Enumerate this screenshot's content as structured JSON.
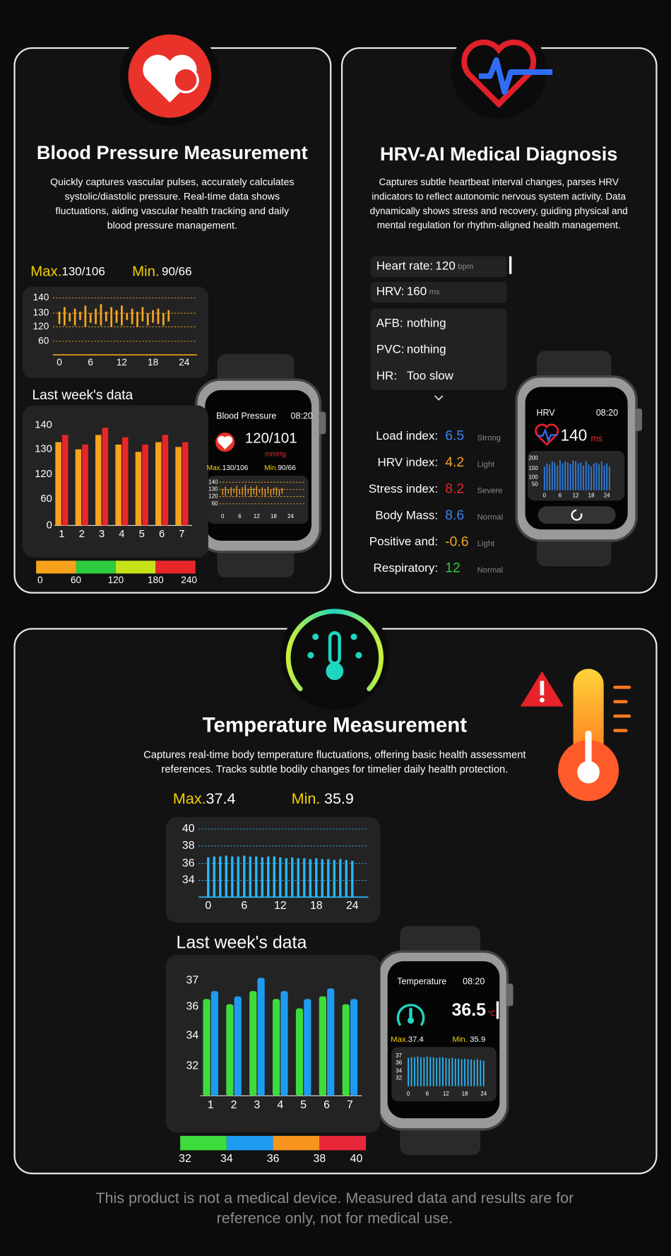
{
  "blood_pressure": {
    "title": "Blood Pressure Measurement",
    "description": [
      "Quickly captures vascular pulses, accurately calculates",
      "systolic/diastolic pressure. Real-time data shows",
      "fluctuations, aiding vascular health tracking and daily",
      "blood pressure management."
    ],
    "max_label": "Max.",
    "max_value": "130/106",
    "min_label": "Min.",
    "min_value": "90/66",
    "day_chart": {
      "yticks": [
        140,
        130,
        120,
        60
      ],
      "xticks": [
        0,
        6,
        12,
        18,
        24
      ],
      "color": "#f5a623",
      "x": [
        0,
        1,
        2,
        3,
        4,
        5,
        6,
        7,
        8,
        9,
        10,
        11,
        12,
        13,
        14,
        15,
        16,
        17,
        18,
        19,
        20,
        21
      ],
      "ranges": [
        [
          122,
          131
        ],
        [
          121,
          134
        ],
        [
          124,
          130
        ],
        [
          121,
          133
        ],
        [
          125,
          131
        ],
        [
          120,
          135
        ],
        [
          123,
          130
        ],
        [
          122,
          133
        ],
        [
          121,
          136
        ],
        [
          124,
          131
        ],
        [
          120,
          134
        ],
        [
          123,
          132
        ],
        [
          121,
          135
        ],
        [
          125,
          130
        ],
        [
          122,
          133
        ],
        [
          120,
          131
        ],
        [
          124,
          134
        ],
        [
          121,
          130
        ],
        [
          123,
          132
        ],
        [
          122,
          133
        ],
        [
          121,
          130
        ],
        [
          124,
          132
        ]
      ]
    },
    "week_title": "Last week's data",
    "week_chart": {
      "yticks": [
        140,
        130,
        120,
        60,
        0
      ],
      "categories": [
        "1",
        "2",
        "3",
        "4",
        "5",
        "6",
        "7"
      ],
      "series": [
        {
          "color": "#f7a21b",
          "values": [
            133,
            130,
            136,
            132,
            129,
            133,
            131
          ]
        },
        {
          "color": "#e8262a",
          "values": [
            136,
            132,
            139,
            135,
            132,
            136,
            133
          ]
        }
      ]
    },
    "scale": {
      "ticks": [
        0,
        60,
        120,
        180,
        240
      ],
      "colors": [
        "#f7a21b",
        "#2ecc40",
        "#c6e21b",
        "#e8262a"
      ]
    },
    "watch": {
      "title": "Blood Pressure",
      "time": "08:20",
      "reading": "120/101",
      "unit": "mmHg",
      "max_label": "Max.",
      "max_value": "130/106",
      "min_label": "Min.",
      "min_value": "90/66",
      "yticks": [
        140,
        130,
        120,
        60
      ],
      "xticks": [
        0,
        6,
        12,
        18,
        24
      ]
    }
  },
  "hrv": {
    "title": "HRV-AI Medical Diagnosis",
    "description": [
      "Captures subtle heartbeat interval changes, parses HRV",
      "indicators to reflect autonomic nervous system activity. Data",
      "dynamically shows stress and recovery, guiding physical and",
      "mental regulation for rhythm-aligned health management."
    ],
    "readings": [
      {
        "label": "Heart rate:",
        "value": "120",
        "unit": "bpm"
      },
      {
        "label": "HRV:",
        "value": "160",
        "unit": "ms"
      }
    ],
    "findings": [
      {
        "label": "AFB:",
        "value": "nothing"
      },
      {
        "label": "PVC:",
        "value": "nothing"
      },
      {
        "label": "HR:",
        "value": "Too slow"
      }
    ],
    "indices": [
      {
        "label": "Load index:",
        "value": "6.5",
        "status": "Strong",
        "color": "#3b82f6"
      },
      {
        "label": "HRV index:",
        "value": "4.2",
        "status": "Light",
        "color": "#f5a623"
      },
      {
        "label": "Stress index:",
        "value": "8.2",
        "status": "Severe",
        "color": "#e8262a"
      },
      {
        "label": "Body Mass:",
        "value": "8.6",
        "status": "Normal",
        "color": "#3b82f6"
      },
      {
        "label": "Positive and:",
        "value": "-0.6",
        "status": "Light",
        "color": "#f5a623"
      },
      {
        "label": "Respiratory:",
        "value": "12",
        "status": "Normal",
        "color": "#2ecc40"
      }
    ],
    "watch": {
      "title": "HRV",
      "time": "08:20",
      "reading": "140",
      "unit": "ms",
      "yticks": [
        200,
        150,
        100,
        50
      ],
      "xticks": [
        0,
        6,
        12,
        18,
        24
      ],
      "color": "#2f7de1",
      "x": [
        0,
        1,
        2,
        3,
        4,
        5,
        6,
        7,
        8,
        9,
        10,
        11,
        12,
        13,
        14,
        15,
        16,
        17,
        18,
        19,
        20,
        21,
        22,
        23,
        24,
        25
      ],
      "values": [
        160,
        175,
        170,
        185,
        180,
        165,
        190,
        175,
        185,
        180,
        170,
        190,
        185,
        175,
        180,
        165,
        185,
        170,
        160,
        175,
        180,
        170,
        185,
        165,
        175,
        160
      ]
    }
  },
  "temperature": {
    "title": "Temperature Measurement",
    "description": [
      "Captures real-time body temperature fluctuations, offering basic health assessment",
      "references. Tracks subtle bodily changes for timelier daily health protection."
    ],
    "max_label": "Max.",
    "max_value": "37.4",
    "min_label": "Min.",
    "min_value": "35.9",
    "day_chart": {
      "yticks": [
        40,
        38,
        36,
        34
      ],
      "xticks": [
        0,
        6,
        12,
        18,
        24
      ],
      "color": "#29b6f6",
      "x": [
        0,
        1,
        2,
        3,
        4,
        5,
        6,
        7,
        8,
        9,
        10,
        11,
        12,
        13,
        14,
        15,
        16,
        17,
        18,
        19,
        20,
        21,
        22,
        23,
        24
      ],
      "values": [
        36.7,
        36.8,
        36.8,
        36.9,
        36.8,
        36.8,
        36.9,
        36.8,
        36.8,
        36.7,
        36.8,
        36.8,
        36.7,
        36.6,
        36.7,
        36.6,
        36.6,
        36.5,
        36.6,
        36.5,
        36.5,
        36.4,
        36.5,
        36.4,
        36.3
      ]
    },
    "week_title": "Last week's data",
    "week_chart": {
      "yticks": [
        37,
        36,
        34,
        32
      ],
      "categories": [
        "1",
        "2",
        "3",
        "4",
        "5",
        "6",
        "7"
      ],
      "series": [
        {
          "color": "#3ddc3d",
          "values": [
            36.3,
            36.1,
            36.6,
            36.3,
            35.9,
            36.4,
            36.1
          ]
        },
        {
          "color": "#1e9bf0",
          "values": [
            36.6,
            36.4,
            37.1,
            36.6,
            36.3,
            36.7,
            36.3
          ]
        }
      ]
    },
    "scale": {
      "ticks": [
        32,
        34,
        36,
        38,
        40
      ],
      "colors": [
        "#3ddc3d",
        "#1e9bf0",
        "#f7941d",
        "#e8263a"
      ]
    },
    "watch": {
      "title": "Temperature",
      "time": "08:20",
      "reading": "36.5",
      "unit": "℃",
      "max_label": "Max.",
      "max_value": "37.4",
      "min_label": "Min.",
      "min_value": "35.9",
      "yticks": [
        37,
        36,
        34,
        32
      ],
      "xticks": [
        0,
        6,
        12,
        18,
        24
      ]
    }
  },
  "disclaimer": [
    "This product is not a medical device. Measured data and results are for",
    "reference only, not for medical use."
  ]
}
